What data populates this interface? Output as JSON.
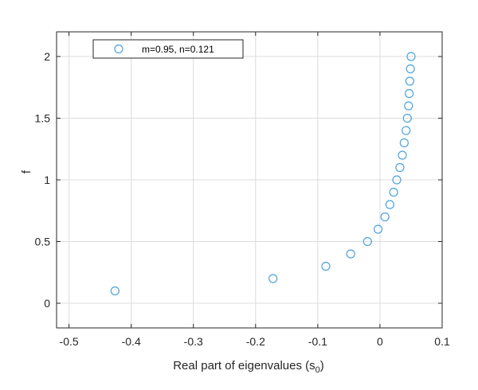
{
  "chart_data": {
    "type": "scatter",
    "xlabel": "Real part of eigenvalues (s",
    "xlabel_subscript": "0",
    "xlabel_suffix": ")",
    "ylabel": "f",
    "xlim": [
      -0.52,
      0.1
    ],
    "ylim": [
      -0.2,
      2.2
    ],
    "xticks": [
      -0.5,
      -0.4,
      -0.3,
      -0.2,
      -0.1,
      0,
      0.1
    ],
    "xtick_labels": [
      "-0.5",
      "-0.4",
      "-0.3",
      "-0.2",
      "-0.1",
      "0",
      "0.1"
    ],
    "yticks": [
      0,
      0.5,
      1,
      1.5,
      2
    ],
    "ytick_labels": [
      "0",
      "0.5",
      "1",
      "1.5",
      "2"
    ],
    "grid": true,
    "legend_position": "top-left",
    "series": [
      {
        "name": "m=0.95, n=0.121",
        "marker": "open-circle",
        "color": "#4da3dc",
        "x": [
          -0.426,
          -0.172,
          -0.087,
          -0.047,
          -0.02,
          -0.003,
          0.008,
          0.016,
          0.022,
          0.027,
          0.032,
          0.036,
          0.039,
          0.042,
          0.044,
          0.046,
          0.047,
          0.048,
          0.049,
          0.05
        ],
        "y": [
          0.1,
          0.2,
          0.3,
          0.4,
          0.5,
          0.6,
          0.7,
          0.8,
          0.9,
          1.0,
          1.1,
          1.2,
          1.3,
          1.4,
          1.5,
          1.6,
          1.7,
          1.8,
          1.9,
          2.0
        ]
      }
    ]
  }
}
